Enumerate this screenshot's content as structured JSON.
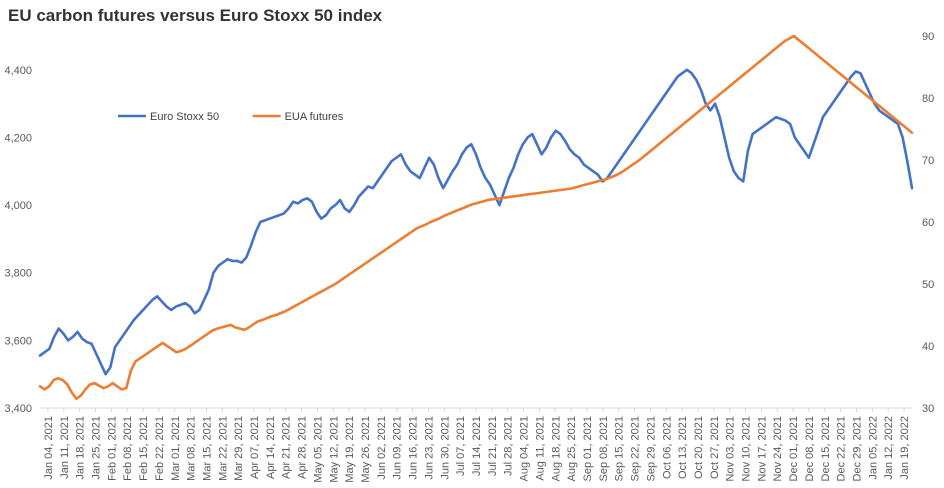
{
  "chart_data": {
    "type": "line",
    "title": "EU carbon futures versus Euro Stoxx 50 index",
    "legend_position": "top-left",
    "grid": false,
    "x_tick_labels": [
      "Jan 04, 2021",
      "Jan 11, 2021",
      "Jan 18, 2021",
      "Jan 25, 2021",
      "Feb 01, 2021",
      "Feb 08, 2021",
      "Feb 15, 2021",
      "Feb 22, 2021",
      "Mar 01, 2021",
      "Mar 08, 2021",
      "Mar 15, 2021",
      "Mar 22, 2021",
      "Mar 29, 2021",
      "Apr 07, 2021",
      "Apr 14, 2021",
      "Apr 21, 2021",
      "Apr 28, 2021",
      "May 05, 2021",
      "May 12, 2021",
      "May 19, 2021",
      "May 26, 2021",
      "Jun 02, 2021",
      "Jun 09, 2021",
      "Jun 16, 2021",
      "Jun 23, 2021",
      "Jun 30, 2021",
      "Jul 07, 2021",
      "Jul 14, 2021",
      "Jul 21, 2021",
      "Jul 28, 2021",
      "Aug 04, 2021",
      "Aug 11, 2021",
      "Aug 18, 2021",
      "Aug 25, 2021",
      "Sep 01, 2021",
      "Sep 08, 2021",
      "Sep 15, 2021",
      "Sep 22, 2021",
      "Sep 29, 2021",
      "Oct 06, 2021",
      "Oct 13, 2021",
      "Oct 20, 2021",
      "Oct 27, 2021",
      "Nov 03, 2021",
      "Nov 10, 2021",
      "Nov 17, 2021",
      "Nov 24, 2021",
      "Dec 01, 2021",
      "Dec 08, 2021",
      "Dec 15, 2021",
      "Dec 22, 2021",
      "Dec 29, 2021",
      "Jan 05, 2022",
      "Jan 12, 2022",
      "Jan 19, 2022"
    ],
    "y_left": {
      "ylim": [
        3400,
        4500
      ],
      "tick_values": [
        3400,
        3600,
        3800,
        4000,
        4200,
        4400
      ],
      "tick_labels": [
        "3,400",
        "3,600",
        "3,800",
        "4,000",
        "4,200",
        "4,400"
      ]
    },
    "y_right": {
      "ylim": [
        30,
        90
      ],
      "tick_values": [
        30,
        40,
        50,
        60,
        70,
        80,
        90
      ],
      "tick_labels": [
        "30",
        "40",
        "50",
        "60",
        "70",
        "80",
        "90"
      ]
    },
    "series": [
      {
        "name": "Euro Stoxx 50",
        "color": "#4472C4",
        "axis": "left",
        "values": [
          3555,
          3565,
          3575,
          3610,
          3635,
          3620,
          3600,
          3610,
          3625,
          3605,
          3595,
          3590,
          3560,
          3530,
          3500,
          3520,
          3580,
          3600,
          3620,
          3640,
          3660,
          3675,
          3690,
          3705,
          3720,
          3730,
          3715,
          3700,
          3690,
          3700,
          3705,
          3710,
          3700,
          3680,
          3690,
          3720,
          3750,
          3800,
          3820,
          3830,
          3840,
          3835,
          3835,
          3830,
          3845,
          3880,
          3920,
          3950,
          3955,
          3960,
          3965,
          3970,
          3975,
          3990,
          4010,
          4005,
          4015,
          4020,
          4010,
          3980,
          3960,
          3970,
          3990,
          4000,
          4015,
          3990,
          3980,
          4000,
          4025,
          4040,
          4055,
          4050,
          4070,
          4090,
          4110,
          4130,
          4140,
          4150,
          4120,
          4100,
          4090,
          4080,
          4110,
          4140,
          4120,
          4080,
          4050,
          4075,
          4100,
          4120,
          4150,
          4170,
          4180,
          4150,
          4110,
          4080,
          4060,
          4030,
          4000,
          4040,
          4080,
          4110,
          4150,
          4180,
          4200,
          4210,
          4180,
          4150,
          4170,
          4200,
          4220,
          4210,
          4190,
          4165,
          4150,
          4140,
          4120,
          4110,
          4100,
          4090,
          4070,
          4080,
          4100,
          4120,
          4140,
          4160,
          4180,
          4200,
          4220,
          4240,
          4260,
          4280,
          4300,
          4320,
          4340,
          4360,
          4380,
          4390,
          4400,
          4390,
          4370,
          4340,
          4300,
          4280,
          4300,
          4260,
          4200,
          4140,
          4100,
          4080,
          4070,
          4160,
          4210,
          4220,
          4230,
          4240,
          4250,
          4260,
          4255,
          4250,
          4240,
          4200,
          4180,
          4160,
          4140,
          4180,
          4220,
          4260,
          4280,
          4300,
          4320,
          4340,
          4360,
          4380,
          4395,
          4390,
          4360,
          4330,
          4300,
          4280,
          4270,
          4260,
          4250,
          4240,
          4200,
          4130,
          4050
        ]
      },
      {
        "name": "EUA futures",
        "color": "#ED7D31",
        "axis": "right",
        "values": [
          33.5,
          33.0,
          33.5,
          34.5,
          34.8,
          34.5,
          33.8,
          32.5,
          31.5,
          32.0,
          33.0,
          33.8,
          34.0,
          33.6,
          33.2,
          33.5,
          34.0,
          33.5,
          33.0,
          33.2,
          36.0,
          37.5,
          38.0,
          38.5,
          39.0,
          39.5,
          40.0,
          40.5,
          40.0,
          39.5,
          39.0,
          39.2,
          39.5,
          40.0,
          40.5,
          41.0,
          41.5,
          42.0,
          42.5,
          42.8,
          43.0,
          43.2,
          43.4,
          43.0,
          42.8,
          42.6,
          43.0,
          43.5,
          44.0,
          44.2,
          44.5,
          44.8,
          45.0,
          45.3,
          45.6,
          46.0,
          46.4,
          46.8,
          47.2,
          47.6,
          48.0,
          48.4,
          48.8,
          49.2,
          49.6,
          50.0,
          50.5,
          51.0,
          51.5,
          52.0,
          52.5,
          53.0,
          53.5,
          54.0,
          54.5,
          55.0,
          55.5,
          56.0,
          56.5,
          57.0,
          57.5,
          58.0,
          58.5,
          59.0,
          59.3,
          59.6,
          60.0,
          60.3,
          60.6,
          61.0,
          61.3,
          61.6,
          61.9,
          62.2,
          62.5,
          62.8,
          63.0,
          63.2,
          63.4,
          63.6,
          63.7,
          63.8,
          63.9,
          64.0,
          64.1,
          64.2,
          64.3,
          64.4,
          64.5,
          64.6,
          64.7,
          64.8,
          64.9,
          65.0,
          65.1,
          65.2,
          65.3,
          65.4,
          65.6,
          65.8,
          66.0,
          66.2,
          66.4,
          66.6,
          66.8,
          67.0,
          67.3,
          67.6,
          68.0,
          68.5,
          69.0,
          69.5,
          70.0,
          70.6,
          71.2,
          71.8,
          72.4,
          73.0,
          73.6,
          74.2,
          74.8,
          75.4,
          76.0,
          76.6,
          77.2,
          77.8,
          78.4,
          79.0,
          79.6,
          80.2,
          80.8,
          81.4,
          82.0,
          82.6,
          83.2,
          83.8,
          84.4,
          85.0,
          85.6,
          86.2,
          86.8,
          87.4,
          88.0,
          88.6,
          89.2,
          89.6,
          90.0,
          89.4,
          88.8,
          88.2,
          87.6,
          87.0,
          86.4,
          85.8,
          85.2,
          84.6,
          84.0,
          83.4,
          82.8,
          82.2,
          81.6,
          81.0,
          80.4,
          79.8,
          79.2,
          78.6,
          78.0,
          77.4,
          76.8,
          76.2,
          75.6,
          75.0,
          74.4
        ]
      }
    ]
  }
}
